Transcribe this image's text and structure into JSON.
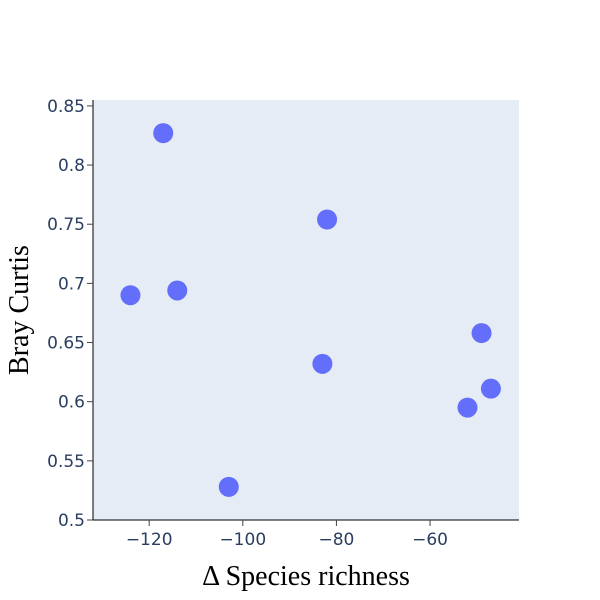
{
  "chart_data": {
    "type": "scatter",
    "xlabel": "Δ Species richness",
    "ylabel": "Bray Curtis",
    "xlim": [
      -132,
      -41
    ],
    "ylim": [
      0.5,
      0.855
    ],
    "x_ticks": [
      -120,
      -100,
      -80,
      -60
    ],
    "x_tick_labels": [
      "−120",
      "−100",
      "−80",
      "−60"
    ],
    "y_ticks": [
      0.5,
      0.55,
      0.6,
      0.65,
      0.7,
      0.75,
      0.8,
      0.85
    ],
    "y_tick_labels": [
      "0.5",
      "0.55",
      "0.6",
      "0.65",
      "0.7",
      "0.75",
      "0.8",
      "0.85"
    ],
    "grid": false,
    "colors": {
      "marker": "#636efa",
      "plot_bg": "#e5ecf6",
      "axis_line": "#000000"
    },
    "points": [
      {
        "x": -117,
        "y": 0.827
      },
      {
        "x": -82,
        "y": 0.754
      },
      {
        "x": -124,
        "y": 0.69
      },
      {
        "x": -114,
        "y": 0.694
      },
      {
        "x": -49,
        "y": 0.658
      },
      {
        "x": -83,
        "y": 0.632
      },
      {
        "x": -47,
        "y": 0.611
      },
      {
        "x": -52,
        "y": 0.595
      },
      {
        "x": -103,
        "y": 0.528
      }
    ]
  }
}
